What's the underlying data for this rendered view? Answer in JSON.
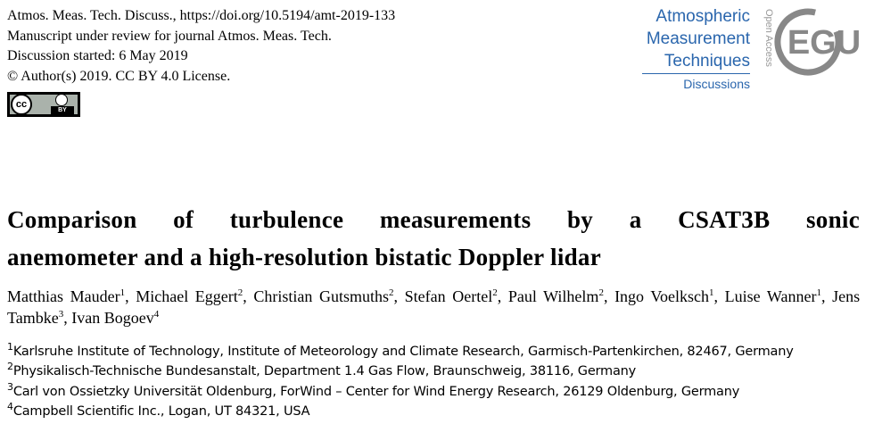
{
  "header": {
    "lines": [
      "Atmos. Meas. Tech. Discuss., https://doi.org/10.5194/amt-2019-133",
      "Manuscript under review for journal Atmos. Meas. Tech.",
      "Discussion started: 6 May 2019",
      "© Author(s) 2019. CC BY 4.0 License."
    ],
    "badge": {
      "cc": "cc",
      "by": "BY"
    }
  },
  "logo": {
    "journal": [
      "Atmospheric",
      "Measurement",
      "Techniques"
    ],
    "series": "Discussions",
    "access": "Open Access",
    "publisher": "EGU"
  },
  "title_lines": [
    "Comparison of turbulence measurements by a CSAT3B sonic",
    "anemometer and a high-resolution bistatic Doppler lidar"
  ],
  "author_separator": ", ",
  "authors": [
    {
      "name": "Matthias Mauder",
      "affiliation": "1"
    },
    {
      "name": "Michael Eggert",
      "affiliation": "2"
    },
    {
      "name": "Christian Gutsmuths",
      "affiliation": "2"
    },
    {
      "name": "Stefan Oertel",
      "affiliation": "2"
    },
    {
      "name": "Paul Wilhelm",
      "affiliation": "2"
    },
    {
      "name": "Ingo Voelksch",
      "affiliation": "1"
    },
    {
      "name": "Luise Wanner",
      "affiliation": "1"
    },
    {
      "name": "Jens Tambke",
      "affiliation": "3"
    },
    {
      "name": "Ivan Bogoev",
      "affiliation": "4"
    }
  ],
  "affiliations": [
    {
      "number": "1",
      "text": "Karlsruhe Institute of Technology, Institute of Meteorology and Climate Research, Garmisch-Partenkirchen, 82467, Germany"
    },
    {
      "number": "2",
      "text": "Physikalisch-Technische Bundesanstalt, Department 1.4 Gas Flow, Braunschweig, 38116, Germany"
    },
    {
      "number": "3",
      "text": "Carl von Ossietzky Universität Oldenburg, ForWind – Center for Wind Energy Research, 26129 Oldenburg, Germany"
    },
    {
      "number": "4",
      "text": "Campbell Scientific Inc., Logan, UT 84321, USA"
    }
  ]
}
